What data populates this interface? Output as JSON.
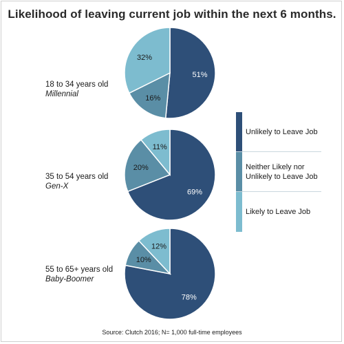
{
  "chart_data": {
    "type": "pie",
    "title": "Likelihood of leaving current job within the next 6 months.",
    "categories": [
      "Unlikely to Leave Job",
      "Neither Likely nor Unlikely to Leave Job",
      "Likely to Leave Job"
    ],
    "colors": [
      "#2e4f78",
      "#5a8ea6",
      "#7dbccf"
    ],
    "groups": [
      {
        "age": "18 to 34 years old",
        "generation": "Millennial",
        "values": [
          51,
          16,
          32
        ],
        "labels": [
          "51%",
          "16%",
          "32%"
        ]
      },
      {
        "age": "35 to 54 years old",
        "generation": "Gen-X",
        "values": [
          69,
          20,
          11
        ],
        "labels": [
          "69%",
          "20%",
          "11%"
        ]
      },
      {
        "age": "55 to 65+ years old",
        "generation": "Baby-Boomer",
        "values": [
          78,
          10,
          12
        ],
        "labels": [
          "78%",
          "10%",
          "12%"
        ]
      }
    ],
    "legend": {
      "position": "right",
      "items": [
        "Unlikely to Leave Job",
        "Neither Likely nor Unlikely to Leave Job",
        "Likely to Leave Job"
      ]
    },
    "source": "Source:  Clutch 2016; N= 1,000 full-time employees"
  }
}
